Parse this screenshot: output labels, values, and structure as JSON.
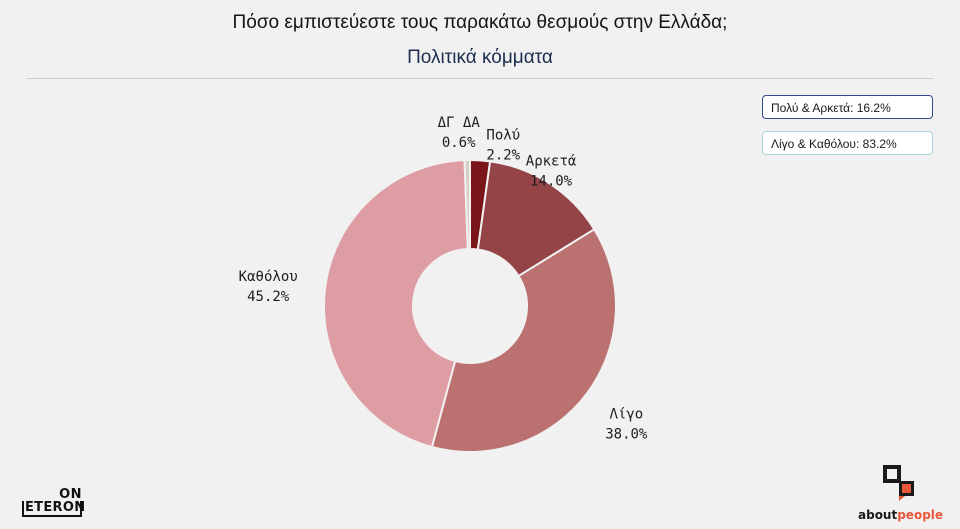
{
  "header": {
    "title": "Πόσο εμπιστεύεστε τους παρακάτω θεσμούς στην Ελλάδα;",
    "subtitle": "Πολιτικά κόμματα"
  },
  "summary": [
    {
      "label": "Πολύ & Αρκετά: 16.2%",
      "border_color": "#2d4a8a"
    },
    {
      "label": "Λίγο & Καθόλου: 83.2%",
      "border_color": "#a9d4dc"
    }
  ],
  "chart_data": {
    "type": "pie",
    "donut": true,
    "title": "Πόσο εμπιστεύεστε τους παρακάτω θεσμούς στην Ελλάδα;",
    "subtitle": "Πολιτικά κόμματα",
    "slices": [
      {
        "name": "Πολύ",
        "value": 2.2,
        "label": "2.2%",
        "color": "#7a1519"
      },
      {
        "name": "Αρκετά",
        "value": 14.0,
        "label": "14.0%",
        "color": "#944347"
      },
      {
        "name": "Λίγο",
        "value": 38.0,
        "label": "38.0%",
        "color": "#bb7170"
      },
      {
        "name": "Καθόλου",
        "value": 45.2,
        "label": "45.2%",
        "color": "#de9ca3"
      },
      {
        "name": "ΔΓ ΔΑ",
        "value": 0.6,
        "label": "0.6%",
        "color": "#d8cfc6"
      }
    ]
  },
  "logos": {
    "on_word": "ON",
    "eteron_word": "ETERON",
    "aboutpeople_about": "about",
    "aboutpeople_people": "people",
    "aboutpeople_icon_color": "#e9573b"
  }
}
